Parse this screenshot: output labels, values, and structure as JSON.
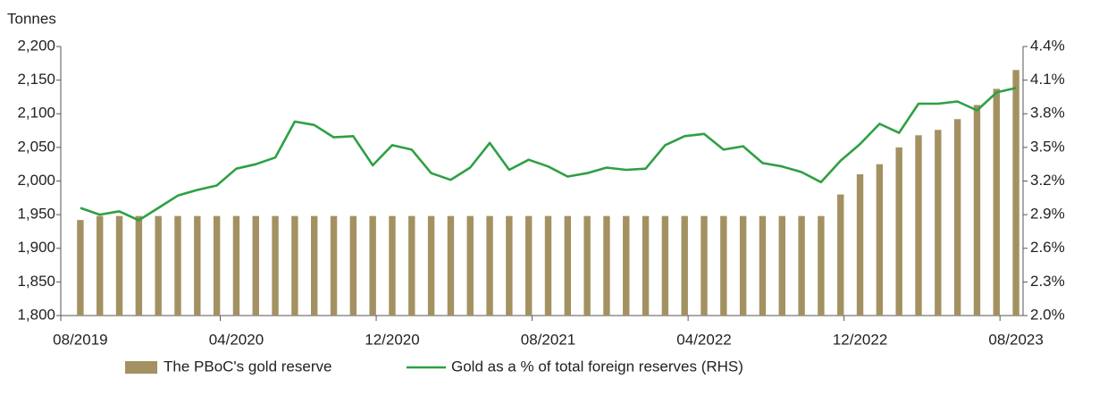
{
  "chart_data": {
    "type": "bar-line",
    "y_label": "Tonnes",
    "categories": [
      "08/2019",
      null,
      null,
      null,
      null,
      null,
      null,
      null,
      "04/2020",
      null,
      null,
      null,
      null,
      null,
      null,
      null,
      "12/2020",
      null,
      null,
      null,
      null,
      null,
      null,
      null,
      "08/2021",
      null,
      null,
      null,
      null,
      null,
      null,
      null,
      "04/2022",
      null,
      null,
      null,
      null,
      null,
      null,
      null,
      "12/2022",
      null,
      null,
      null,
      null,
      null,
      null,
      null,
      "08/2023"
    ],
    "series": [
      {
        "name": "The PBoC's gold reserve",
        "type": "bar",
        "color": "#a39161",
        "values": [
          1942,
          1948,
          1948,
          1948,
          1948,
          1948,
          1948,
          1948,
          1948,
          1948,
          1948,
          1948,
          1948,
          1948,
          1948,
          1948,
          1948,
          1948,
          1948,
          1948,
          1948,
          1948,
          1948,
          1948,
          1948,
          1948,
          1948,
          1948,
          1948,
          1948,
          1948,
          1948,
          1948,
          1948,
          1948,
          1948,
          1948,
          1948,
          1948,
          1980,
          2010,
          2025,
          2050,
          2068,
          2076,
          2092,
          2113,
          2137,
          2165
        ]
      },
      {
        "name": "Gold as a % of total foreign reserves (RHS)",
        "type": "line",
        "axis": "y2",
        "color": "#2ea043",
        "values": [
          2.96,
          2.9,
          2.93,
          2.85,
          2.96,
          3.07,
          3.12,
          3.16,
          3.31,
          3.35,
          3.41,
          3.73,
          3.7,
          3.59,
          3.6,
          3.34,
          3.52,
          3.48,
          3.27,
          3.21,
          3.32,
          3.54,
          3.3,
          3.39,
          3.33,
          3.24,
          3.27,
          3.32,
          3.3,
          3.31,
          3.52,
          3.6,
          3.62,
          3.48,
          3.51,
          3.36,
          3.33,
          3.28,
          3.19,
          3.38,
          3.53,
          3.71,
          3.63,
          3.89,
          3.89,
          3.91,
          3.83,
          3.99,
          4.03
        ]
      }
    ],
    "ylim": [
      1800,
      2200
    ],
    "yticks": [
      {
        "value": 1800,
        "label": "1,800"
      },
      {
        "value": 1850,
        "label": "1,850"
      },
      {
        "value": 1900,
        "label": "1,900"
      },
      {
        "value": 1950,
        "label": "1,950"
      },
      {
        "value": 2000,
        "label": "2,000"
      },
      {
        "value": 2050,
        "label": "2,050"
      },
      {
        "value": 2100,
        "label": "2,100"
      },
      {
        "value": 2150,
        "label": "2,150"
      },
      {
        "value": 2200,
        "label": "2,200"
      }
    ],
    "y2lim": [
      2.0,
      4.4
    ],
    "y2ticks": [
      {
        "value": 2.0,
        "label": "2.0%"
      },
      {
        "value": 2.3,
        "label": "2.3%"
      },
      {
        "value": 2.6,
        "label": "2.6%"
      },
      {
        "value": 2.9,
        "label": "2.9%"
      },
      {
        "value": 3.2,
        "label": "3.2%"
      },
      {
        "value": 3.5,
        "label": "3.5%"
      },
      {
        "value": 3.8,
        "label": "3.8%"
      },
      {
        "value": 4.1,
        "label": "4.1%"
      },
      {
        "value": 4.4,
        "label": "4.4%"
      }
    ],
    "legend": "bottom"
  }
}
